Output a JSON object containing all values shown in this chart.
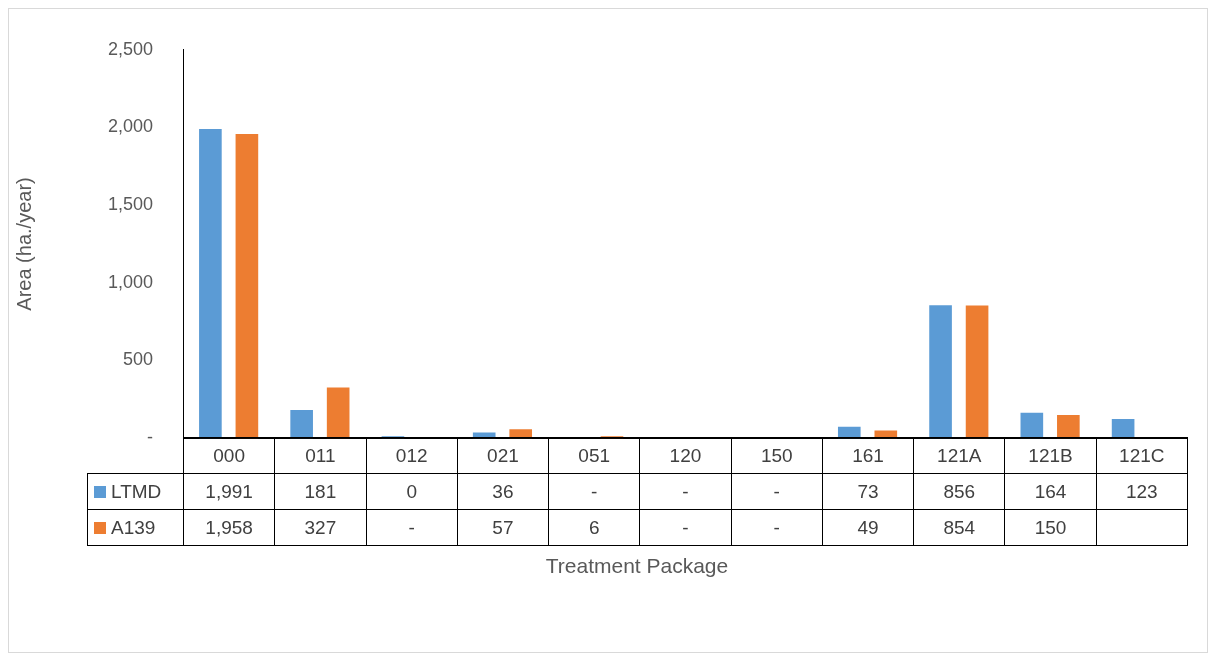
{
  "chart_data": {
    "type": "bar",
    "xlabel": "Treatment Package",
    "ylabel": "Area (ha./year)",
    "categories": [
      "000",
      "011",
      "012",
      "021",
      "051",
      "120",
      "150",
      "161",
      "121A",
      "121B",
      "121C"
    ],
    "series": [
      {
        "name": "LTMD",
        "color": "#5b9bd5",
        "values": [
          1991,
          181,
          0,
          36,
          null,
          null,
          null,
          73,
          856,
          164,
          123
        ],
        "value_labels": [
          "1,991",
          "181",
          "0",
          "36",
          "-",
          "-",
          "-",
          "73",
          "856",
          "164",
          "123"
        ]
      },
      {
        "name": "A139",
        "color": "#ed7d31",
        "values": [
          1958,
          327,
          null,
          57,
          6,
          null,
          null,
          49,
          854,
          150,
          null
        ],
        "value_labels": [
          "1,958",
          "327",
          "-",
          "57",
          "6",
          "-",
          "-",
          "49",
          "854",
          "150",
          null
        ]
      }
    ],
    "ylim": [
      0,
      2500
    ],
    "yticks": [
      {
        "value": 0,
        "label": "-"
      },
      500,
      {
        "value": 1000,
        "label": "1,000"
      },
      {
        "value": 1500,
        "label": "1,500"
      },
      {
        "value": 2000,
        "label": "2,000"
      },
      {
        "value": 2500,
        "label": "2,500"
      }
    ],
    "grid": false,
    "legend": "bottom"
  }
}
